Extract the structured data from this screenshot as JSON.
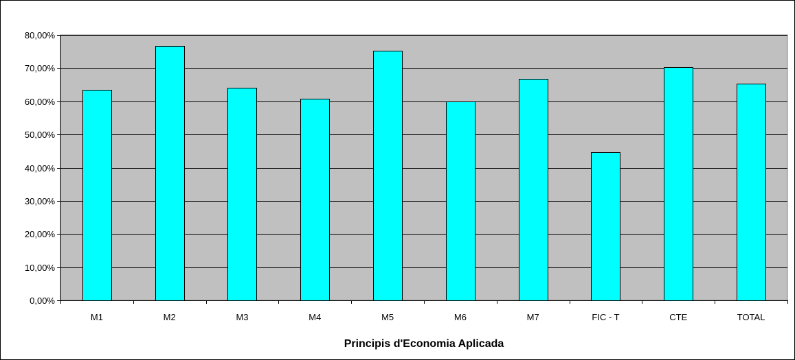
{
  "chart_data": {
    "type": "bar",
    "title": "",
    "xlabel": "Principis d'Economia Aplicada",
    "ylabel": "",
    "categories": [
      "M1",
      "M2",
      "M3",
      "M4",
      "M5",
      "M6",
      "M7",
      "FIC - T",
      "CTE",
      "TOTAL"
    ],
    "series": [
      {
        "values": [
          63.5,
          76.7,
          64.1,
          60.8,
          75.3,
          60.0,
          66.7,
          44.6,
          70.2,
          65.3
        ]
      }
    ],
    "ylim": [
      0,
      80
    ],
    "ytick_step": 10,
    "ytick_format": "percent-2-decimals-comma",
    "grid": true,
    "legend": "none",
    "colors": {
      "bar_fill": "#00ffff",
      "bar_stroke": "#000000",
      "plot_background": "#c0c0c0",
      "gridline": "#000000"
    }
  }
}
